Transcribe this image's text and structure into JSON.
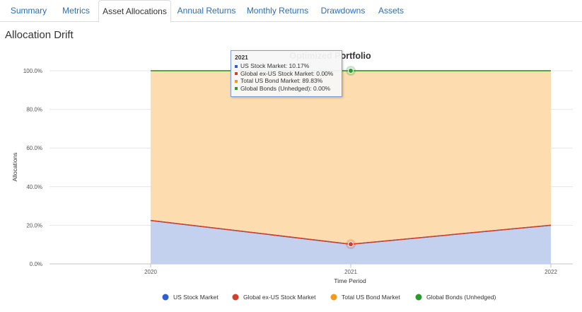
{
  "tabs": [
    {
      "label": "Summary",
      "active": false
    },
    {
      "label": "Metrics",
      "active": false
    },
    {
      "label": "Asset Allocations",
      "active": true
    },
    {
      "label": "Annual Returns",
      "active": false
    },
    {
      "label": "Monthly Returns",
      "active": false
    },
    {
      "label": "Drawdowns",
      "active": false
    },
    {
      "label": "Assets",
      "active": false
    }
  ],
  "section_title": "Allocation Drift",
  "tooltip": {
    "header": "2021",
    "rows": [
      {
        "label": "US Stock Market: 10.17%",
        "color": "#2c5fd0"
      },
      {
        "label": "Global ex-US Stock Market: 0.00%",
        "color": "#d0402a"
      },
      {
        "label": "Total US Bond Market: 89.83%",
        "color": "#f29a1a"
      },
      {
        "label": "Global Bonds (Unhedged): 0.00%",
        "color": "#2a9a2a"
      }
    ]
  },
  "chart_data": {
    "type": "area",
    "stacked": true,
    "title": "Optimized Portfolio",
    "xlabel": "Time Period",
    "ylabel": "Allocations",
    "x": [
      "2020",
      "2021",
      "2022"
    ],
    "ylim": [
      0,
      100
    ],
    "yticks": [
      "0.0%",
      "20.0%",
      "40.0%",
      "60.0%",
      "80.0%",
      "100.0%"
    ],
    "grid": true,
    "legend": "bottom",
    "series": [
      {
        "name": "US Stock Market",
        "values": [
          22.5,
          10.17,
          20.0
        ],
        "color": "#2c5fd0",
        "fill": "#c3d1ef"
      },
      {
        "name": "Global ex-US Stock Market",
        "values": [
          0,
          0,
          0
        ],
        "color": "#d0402a",
        "fill": "#f3c2b8"
      },
      {
        "name": "Total US Bond Market",
        "values": [
          77.5,
          89.83,
          80.0
        ],
        "color": "#f29a1a",
        "fill": "#fddcb0"
      },
      {
        "name": "Global Bonds (Unhedged)",
        "values": [
          0,
          0,
          0
        ],
        "color": "#2a9a2a",
        "fill": "#bfe3bf"
      }
    ]
  }
}
